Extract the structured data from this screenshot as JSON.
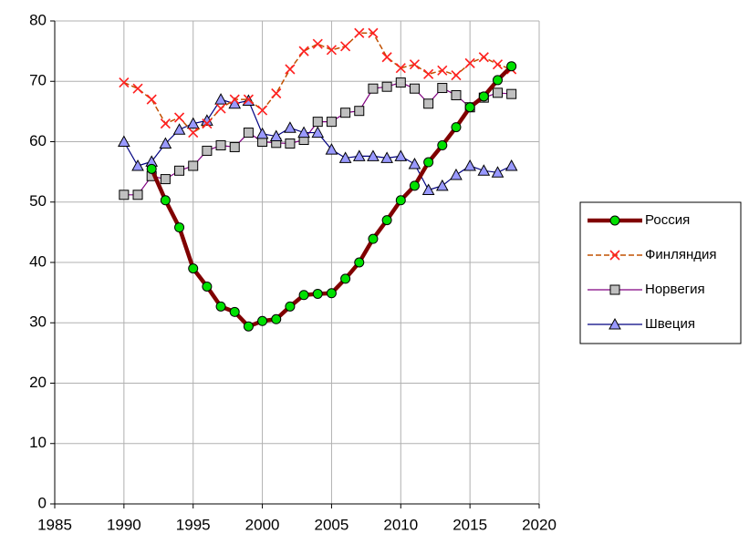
{
  "chart_data": {
    "type": "line",
    "x": [
      1990,
      1991,
      1992,
      1993,
      1994,
      1995,
      1996,
      1997,
      1998,
      1999,
      2000,
      2001,
      2002,
      2003,
      2004,
      2005,
      2006,
      2007,
      2008,
      2009,
      2010,
      2011,
      2012,
      2013,
      2014,
      2015,
      2016,
      2017,
      2018
    ],
    "series": [
      {
        "name": "Россия",
        "color": "#800000",
        "marker": "circle",
        "marker_color": "#00e000",
        "values": [
          null,
          null,
          55.5,
          50.3,
          45.8,
          39,
          36,
          32.7,
          31.8,
          29.4,
          30.3,
          30.6,
          32.7,
          34.6,
          34.8,
          34.9,
          37.3,
          40,
          43.9,
          47,
          50.3,
          52.7,
          56.6,
          59.4,
          62.4,
          65.7,
          67.5,
          70.2,
          72.5
        ]
      },
      {
        "name": "Финляндия",
        "color": "#c05000",
        "marker": "x",
        "marker_color": "#ff2020",
        "values": [
          69.8,
          68.8,
          67,
          63,
          64,
          61.5,
          63,
          65.5,
          67,
          67,
          65.2,
          68,
          72,
          75,
          76.2,
          75.2,
          75.8,
          78,
          78,
          74,
          72.2,
          72.8,
          71.2,
          71.8,
          71,
          73,
          74,
          72.8,
          72
        ]
      },
      {
        "name": "Норвегия",
        "color": "#800080",
        "marker": "square",
        "marker_color": "#c0c0c0",
        "values": [
          51.2,
          51.2,
          54.3,
          53.8,
          55.2,
          56,
          58.5,
          59.4,
          59.1,
          61.5,
          60,
          59.8,
          59.7,
          60.3,
          63.3,
          63.3,
          64.8,
          65.1,
          68.8,
          69.1,
          69.8,
          68.8,
          66.3,
          68.9,
          67.7,
          65.7,
          67.3,
          68.1,
          67.9
        ]
      },
      {
        "name": "Швеция",
        "color": "#000080",
        "marker": "triangle",
        "marker_color": "#9999ff",
        "values": [
          60,
          56,
          56.7,
          59.7,
          62,
          63,
          63.5,
          67,
          66.3,
          66.8,
          61.3,
          60.9,
          62.3,
          61.5,
          61.5,
          58.7,
          57.3,
          57.6,
          57.6,
          57.3,
          57.6,
          56.3,
          52,
          52.7,
          54.5,
          56,
          55.2,
          54.9,
          56
        ]
      }
    ],
    "xlim": [
      1985,
      2020
    ],
    "xticks": [
      1985,
      1990,
      1995,
      2000,
      2005,
      2010,
      2015,
      2020
    ],
    "ylim": [
      0,
      80
    ],
    "yticks": [
      0,
      10,
      20,
      30,
      40,
      50,
      60,
      70,
      80
    ],
    "grid": true,
    "legend": "right"
  }
}
